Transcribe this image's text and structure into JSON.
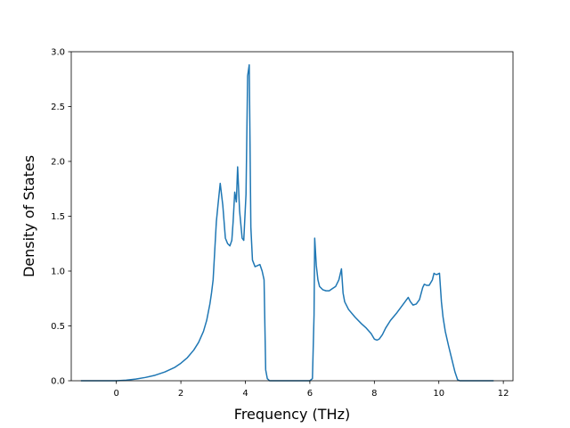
{
  "chart_data": {
    "type": "line",
    "title": "",
    "xlabel": "Frequency (THz)",
    "ylabel": "Density of States",
    "xlim": [
      -1.4,
      12.3
    ],
    "ylim": [
      0.0,
      3.0
    ],
    "xticks": [
      0,
      2,
      4,
      6,
      8,
      10,
      12
    ],
    "xtick_labels": [
      "0",
      "2",
      "4",
      "6",
      "8",
      "10",
      "12"
    ],
    "yticks": [
      0.0,
      0.5,
      1.0,
      1.5,
      2.0,
      2.5,
      3.0
    ],
    "ytick_labels": [
      "0.0",
      "0.5",
      "1.0",
      "1.5",
      "2.0",
      "2.5",
      "3.0"
    ],
    "grid": false,
    "legend": "none",
    "line_color": "#1f77b4",
    "series": [
      {
        "x": [
          -1.1,
          -0.5,
          0.0,
          0.3,
          0.6,
          0.9,
          1.2,
          1.5,
          1.8,
          2.0,
          2.2,
          2.4,
          2.55,
          2.7,
          2.8,
          2.9,
          2.95,
          3.0,
          3.1,
          3.15,
          3.22,
          3.3,
          3.38,
          3.45,
          3.52,
          3.58,
          3.62,
          3.67,
          3.72,
          3.76,
          3.82,
          3.9,
          3.95,
          4.02,
          4.07,
          4.12,
          4.17,
          4.22,
          4.3,
          4.38,
          4.45,
          4.52,
          4.58,
          4.63,
          4.68,
          4.75,
          4.9,
          5.2,
          5.6,
          6.0,
          6.08,
          6.13,
          6.15,
          6.2,
          6.25,
          6.3,
          6.4,
          6.5,
          6.6,
          6.7,
          6.8,
          6.9,
          6.98,
          7.03,
          7.08,
          7.2,
          7.4,
          7.6,
          7.75,
          7.9,
          8.0,
          8.08,
          8.15,
          8.25,
          8.35,
          8.5,
          8.7,
          8.9,
          9.05,
          9.12,
          9.2,
          9.3,
          9.4,
          9.5,
          9.55,
          9.62,
          9.7,
          9.8,
          9.85,
          9.9,
          9.95,
          10.02,
          10.08,
          10.13,
          10.2,
          10.3,
          10.4,
          10.5,
          10.58,
          10.65,
          10.72,
          11.0,
          11.3,
          11.7
        ],
        "y": [
          0.0,
          0.0,
          0.0,
          0.005,
          0.015,
          0.03,
          0.05,
          0.08,
          0.12,
          0.16,
          0.21,
          0.28,
          0.35,
          0.45,
          0.55,
          0.7,
          0.8,
          0.92,
          1.45,
          1.6,
          1.8,
          1.6,
          1.3,
          1.25,
          1.23,
          1.28,
          1.45,
          1.72,
          1.63,
          1.95,
          1.55,
          1.3,
          1.28,
          1.7,
          2.78,
          2.88,
          1.4,
          1.1,
          1.04,
          1.05,
          1.06,
          1.0,
          0.92,
          0.1,
          0.02,
          0.0,
          0.0,
          0.0,
          0.0,
          0.0,
          0.02,
          0.6,
          1.3,
          1.05,
          0.92,
          0.86,
          0.83,
          0.82,
          0.82,
          0.84,
          0.86,
          0.92,
          1.02,
          0.8,
          0.72,
          0.65,
          0.58,
          0.52,
          0.48,
          0.43,
          0.38,
          0.37,
          0.38,
          0.42,
          0.48,
          0.55,
          0.62,
          0.7,
          0.76,
          0.72,
          0.69,
          0.7,
          0.74,
          0.85,
          0.88,
          0.87,
          0.87,
          0.92,
          0.98,
          0.97,
          0.97,
          0.98,
          0.72,
          0.58,
          0.45,
          0.32,
          0.2,
          0.08,
          0.01,
          0.0,
          0.0,
          0.0,
          0.0,
          0.0
        ]
      }
    ]
  }
}
